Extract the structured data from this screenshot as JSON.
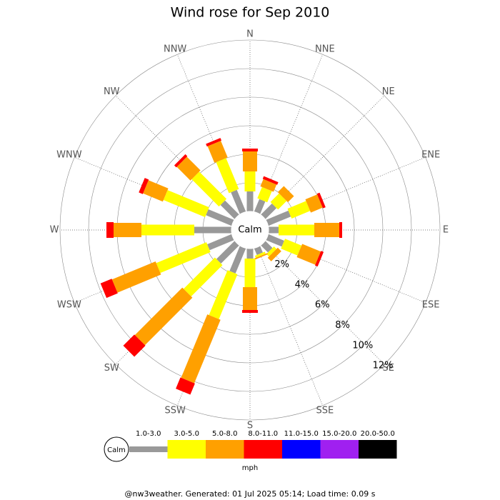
{
  "chart_data": {
    "type": "windrose",
    "title": "Wind rose for Sep 2010",
    "categories": [
      "N",
      "NNE",
      "NE",
      "ENE",
      "E",
      "ESE",
      "SE",
      "SSE",
      "S",
      "SSW",
      "SW",
      "WSW",
      "W",
      "WNW",
      "NW",
      "NNW"
    ],
    "calm_label": "Calm",
    "units": "mph",
    "footer": "@nw3weather. Generated: 01 Jul 2025 05:14; Load time: 0.09 s",
    "rlim": [
      0,
      12
    ],
    "rticks": [
      {
        "value": 2,
        "label": "2%"
      },
      {
        "value": 4,
        "label": "4%"
      },
      {
        "value": 6,
        "label": "6%"
      },
      {
        "value": 8,
        "label": "8%"
      },
      {
        "value": 10,
        "label": "10%"
      },
      {
        "value": 12,
        "label": "12%"
      }
    ],
    "series": [
      {
        "name": "1.0-3.0",
        "color": "#999999",
        "values": [
          1.4,
          0.95,
          1.1,
          1.7,
          0.7,
          1.2,
          0.7,
          0.5,
          0.7,
          1.9,
          1.8,
          1.85,
          2.6,
          1.95,
          1.4,
          1.65
        ]
      },
      {
        "name": "3.0-5.0",
        "color": "#ffff00",
        "values": [
          1.4,
          0.85,
          0.85,
          1.4,
          2.5,
          1.25,
          0.25,
          0.15,
          2.0,
          3.4,
          3.1,
          3.8,
          3.7,
          3.15,
          2.7,
          2.35
        ]
      },
      {
        "name": "5.0-8.0",
        "color": "#ffa000",
        "values": [
          1.4,
          0.55,
          0.6,
          0.9,
          1.75,
          1.4,
          0.35,
          0.1,
          1.6,
          4.8,
          4.7,
          3.3,
          1.95,
          1.5,
          1.35,
          1.25
        ]
      },
      {
        "name": "8.0-11.0",
        "color": "#ff0000",
        "values": [
          0.2,
          0.2,
          0,
          0.2,
          0.2,
          0.2,
          0,
          0,
          0.2,
          0.85,
          1.1,
          0.85,
          0.5,
          0.3,
          0.2,
          0.2
        ]
      },
      {
        "name": "11.0-15.0",
        "color": "#0000ff",
        "values": [
          0,
          0,
          0,
          0,
          0,
          0,
          0,
          0,
          0,
          0,
          0,
          0,
          0,
          0,
          0,
          0
        ]
      },
      {
        "name": "15.0-20.0",
        "color": "#a020f0",
        "values": [
          0,
          0,
          0,
          0,
          0,
          0,
          0,
          0,
          0,
          0,
          0,
          0,
          0,
          0,
          0,
          0
        ]
      },
      {
        "name": "20.0-50.0",
        "color": "#000000",
        "values": [
          0,
          0,
          0,
          0,
          0,
          0,
          0,
          0,
          0,
          0,
          0,
          0,
          0,
          0,
          0,
          0
        ]
      }
    ]
  }
}
